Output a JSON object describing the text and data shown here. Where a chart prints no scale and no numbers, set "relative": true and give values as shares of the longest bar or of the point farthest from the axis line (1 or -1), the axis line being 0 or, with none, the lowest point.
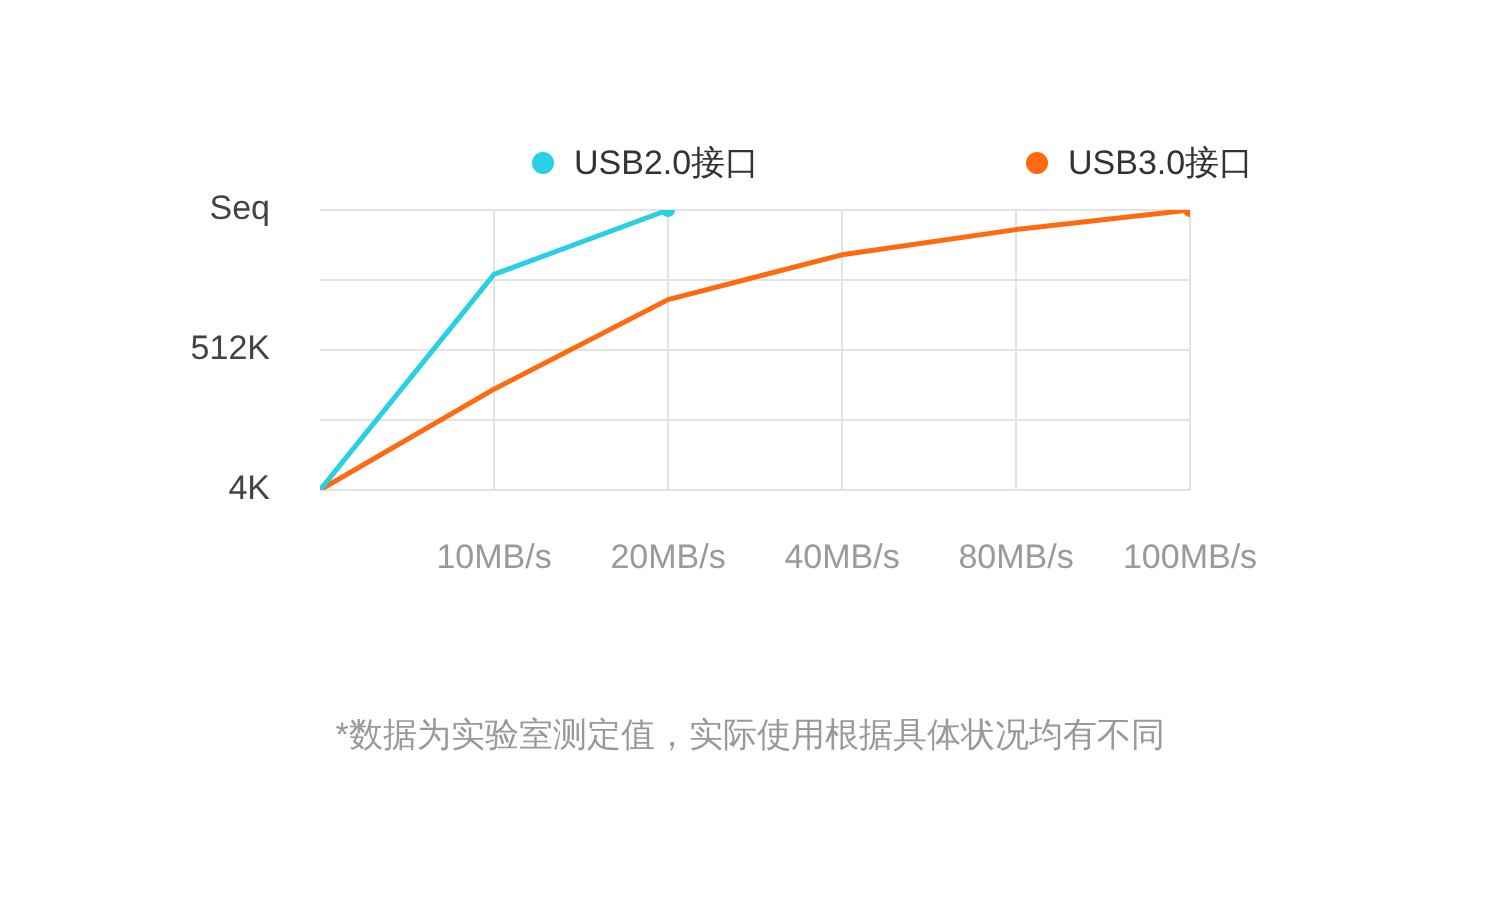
{
  "chart_data": {
    "type": "line",
    "relative": true,
    "categories": [
      null,
      "10MB/s",
      "20MB/s",
      "40MB/s",
      "80MB/s",
      "100MB/s"
    ],
    "y_categories": [
      "Seq",
      null,
      "512K",
      null,
      "4K"
    ],
    "series": [
      {
        "name": "USB2.0接口",
        "color": "#29cfe2",
        "values": [
          0,
          0.77,
          1,
          null,
          null,
          null
        ]
      },
      {
        "name": "USB3.0接口",
        "color": "#ff6a10",
        "values": [
          0,
          0.36,
          0.68,
          0.84,
          0.93,
          1
        ]
      }
    ],
    "grid": true,
    "legend": "top",
    "line_style": "solid",
    "annotations": [
      "*数据为实验室测定值，实际使用根据具体状况均有不同"
    ]
  }
}
